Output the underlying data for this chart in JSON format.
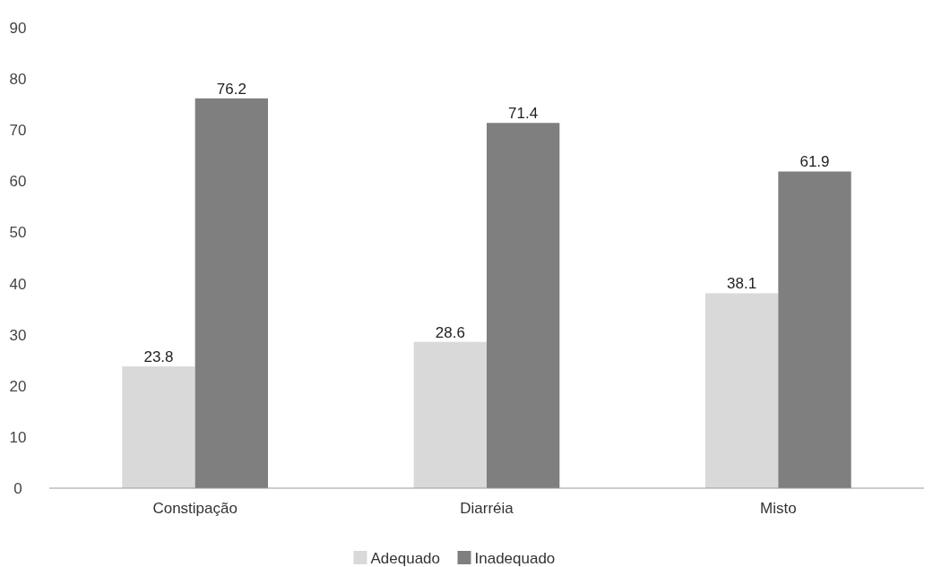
{
  "chart_data": {
    "type": "bar",
    "categories": [
      "Constipação",
      "Diarréia",
      "Misto"
    ],
    "series": [
      {
        "name": "Adequado",
        "color": "#d9d9d9",
        "values": [
          23.8,
          28.6,
          38.1
        ]
      },
      {
        "name": "Inadequado",
        "color": "#7f7f7f",
        "values": [
          76.2,
          71.4,
          61.9
        ]
      }
    ],
    "ylim": [
      0,
      90
    ],
    "yticks": [
      0,
      10,
      20,
      30,
      40,
      50,
      60,
      70,
      80,
      90
    ],
    "data_labels": true,
    "legend": "bottom",
    "grid": false
  }
}
